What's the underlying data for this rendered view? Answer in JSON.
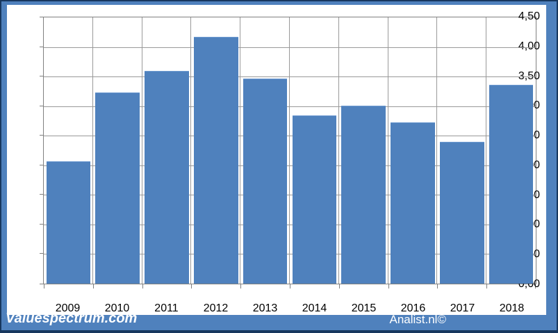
{
  "chart_data": {
    "type": "bar",
    "title": "",
    "xlabel": "",
    "ylabel": "",
    "categories": [
      "2009",
      "2010",
      "2011",
      "2012",
      "2013",
      "2014",
      "2015",
      "2016",
      "2017",
      "2018"
    ],
    "values": [
      2.07,
      3.23,
      3.6,
      4.17,
      3.47,
      2.84,
      3.01,
      2.73,
      2.4,
      3.36
    ],
    "ylim": [
      0,
      4.5
    ],
    "y_ticks": [
      {
        "v": 4.5,
        "label": "4,50"
      },
      {
        "v": 4.0,
        "label": "4,00"
      },
      {
        "v": 3.5,
        "label": "3,50"
      },
      {
        "v": 3.0,
        "label": "3,00"
      },
      {
        "v": 2.5,
        "label": "2,50"
      },
      {
        "v": 2.0,
        "label": "2,00"
      },
      {
        "v": 1.5,
        "label": "1,50"
      },
      {
        "v": 1.0,
        "label": "1,00"
      },
      {
        "v": 0.5,
        "label": "0,50"
      },
      {
        "v": 0.0,
        "label": "0,00"
      }
    ],
    "grid": "horizontal-and-vertical",
    "legend": "none"
  },
  "footer": {
    "brand_left": "Valuespectrum.com",
    "brand_right": "Analist.nl©"
  },
  "colors": {
    "bar": "#4f81bd",
    "frame": "#4f81bd",
    "outer_edge": "#17375e",
    "plot_background": "#ffffff",
    "gridline": "#999999",
    "plot_border": "#808080",
    "axis_text": "#000000",
    "footer_text": "#ffffff"
  }
}
